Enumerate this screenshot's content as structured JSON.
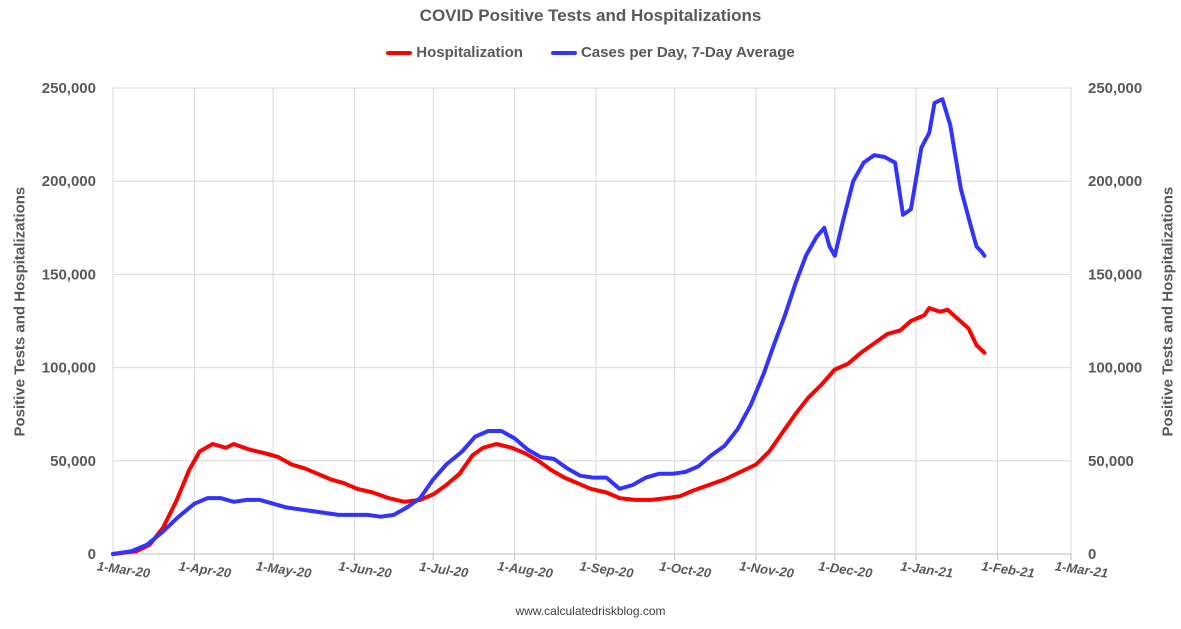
{
  "chart_data": {
    "type": "line",
    "title": "COVID Positive Tests and Hospitalizations",
    "ylabel_left": "Positive Tests and Hospitalizations",
    "ylabel_right": "Positive Tests and Hospitalizations",
    "source": "www.calculatedriskblog.com",
    "ylim": [
      0,
      250000
    ],
    "yticks": [
      "0",
      "50,000",
      "100,000",
      "150,000",
      "200,000",
      "250,000"
    ],
    "xlim": [
      "2020-03-01",
      "2021-03-01"
    ],
    "xticks": [
      "1-Mar-20",
      "1-Apr-20",
      "1-May-20",
      "1-Jun-20",
      "1-Jul-20",
      "1-Aug-20",
      "1-Sep-20",
      "1-Oct-20",
      "1-Nov-20",
      "1-Dec-20",
      "1-Jan-21",
      "1-Feb-21",
      "1-Mar-21"
    ],
    "grid": true,
    "legend_position": "top",
    "series": [
      {
        "name": "Hospitalization",
        "color": "#ff0000",
        "points": [
          [
            "2020-03-01",
            0
          ],
          [
            "2020-03-10",
            1500
          ],
          [
            "2020-03-15",
            5000
          ],
          [
            "2020-03-20",
            14000
          ],
          [
            "2020-03-25",
            28000
          ],
          [
            "2020-03-30",
            45000
          ],
          [
            "2020-04-03",
            55000
          ],
          [
            "2020-04-08",
            59000
          ],
          [
            "2020-04-13",
            57000
          ],
          [
            "2020-04-16",
            59000
          ],
          [
            "2020-04-22",
            56000
          ],
          [
            "2020-04-28",
            54000
          ],
          [
            "2020-05-03",
            52000
          ],
          [
            "2020-05-08",
            48000
          ],
          [
            "2020-05-13",
            46000
          ],
          [
            "2020-05-18",
            43000
          ],
          [
            "2020-05-23",
            40000
          ],
          [
            "2020-05-28",
            38000
          ],
          [
            "2020-06-02",
            35000
          ],
          [
            "2020-06-08",
            33000
          ],
          [
            "2020-06-14",
            30000
          ],
          [
            "2020-06-20",
            28000
          ],
          [
            "2020-06-26",
            29000
          ],
          [
            "2020-07-01",
            32000
          ],
          [
            "2020-07-06",
            37000
          ],
          [
            "2020-07-11",
            43000
          ],
          [
            "2020-07-16",
            53000
          ],
          [
            "2020-07-20",
            57000
          ],
          [
            "2020-07-25",
            59000
          ],
          [
            "2020-07-31",
            57000
          ],
          [
            "2020-08-05",
            54000
          ],
          [
            "2020-08-10",
            50000
          ],
          [
            "2020-08-15",
            45000
          ],
          [
            "2020-08-20",
            41000
          ],
          [
            "2020-08-25",
            38000
          ],
          [
            "2020-08-30",
            35000
          ],
          [
            "2020-09-05",
            33000
          ],
          [
            "2020-09-10",
            30000
          ],
          [
            "2020-09-16",
            29000
          ],
          [
            "2020-09-22",
            29000
          ],
          [
            "2020-09-28",
            30000
          ],
          [
            "2020-10-03",
            31000
          ],
          [
            "2020-10-08",
            34000
          ],
          [
            "2020-10-14",
            37000
          ],
          [
            "2020-10-20",
            40000
          ],
          [
            "2020-10-26",
            44000
          ],
          [
            "2020-11-01",
            48000
          ],
          [
            "2020-11-06",
            55000
          ],
          [
            "2020-11-11",
            65000
          ],
          [
            "2020-11-16",
            75000
          ],
          [
            "2020-11-21",
            84000
          ],
          [
            "2020-11-26",
            91000
          ],
          [
            "2020-12-01",
            99000
          ],
          [
            "2020-12-06",
            102000
          ],
          [
            "2020-12-11",
            108000
          ],
          [
            "2020-12-16",
            113000
          ],
          [
            "2020-12-21",
            118000
          ],
          [
            "2020-12-26",
            120000
          ],
          [
            "2020-12-30",
            125000
          ],
          [
            "2021-01-04",
            128000
          ],
          [
            "2021-01-06",
            132000
          ],
          [
            "2021-01-10",
            130000
          ],
          [
            "2021-01-13",
            131000
          ],
          [
            "2021-01-17",
            126000
          ],
          [
            "2021-01-21",
            121000
          ],
          [
            "2021-01-24",
            112000
          ],
          [
            "2021-01-27",
            108000
          ]
        ]
      },
      {
        "name": "Cases per Day, 7-Day Average",
        "color": "#3333ff",
        "points": [
          [
            "2020-03-01",
            0
          ],
          [
            "2020-03-08",
            1500
          ],
          [
            "2020-03-14",
            5000
          ],
          [
            "2020-03-20",
            12000
          ],
          [
            "2020-03-26",
            20000
          ],
          [
            "2020-04-01",
            27000
          ],
          [
            "2020-04-06",
            30000
          ],
          [
            "2020-04-11",
            30000
          ],
          [
            "2020-04-16",
            28000
          ],
          [
            "2020-04-21",
            29000
          ],
          [
            "2020-04-26",
            29000
          ],
          [
            "2020-05-01",
            27000
          ],
          [
            "2020-05-06",
            25000
          ],
          [
            "2020-05-11",
            24000
          ],
          [
            "2020-05-16",
            23000
          ],
          [
            "2020-05-21",
            22000
          ],
          [
            "2020-05-26",
            21000
          ],
          [
            "2020-06-01",
            21000
          ],
          [
            "2020-06-06",
            21000
          ],
          [
            "2020-06-11",
            20000
          ],
          [
            "2020-06-16",
            21000
          ],
          [
            "2020-06-21",
            25000
          ],
          [
            "2020-06-26",
            30000
          ],
          [
            "2020-07-01",
            40000
          ],
          [
            "2020-07-06",
            48000
          ],
          [
            "2020-07-12",
            55000
          ],
          [
            "2020-07-17",
            63000
          ],
          [
            "2020-07-22",
            66000
          ],
          [
            "2020-07-27",
            66000
          ],
          [
            "2020-08-01",
            62000
          ],
          [
            "2020-08-06",
            56000
          ],
          [
            "2020-08-11",
            52000
          ],
          [
            "2020-08-16",
            51000
          ],
          [
            "2020-08-21",
            46000
          ],
          [
            "2020-08-26",
            42000
          ],
          [
            "2020-08-31",
            41000
          ],
          [
            "2020-09-05",
            41000
          ],
          [
            "2020-09-10",
            35000
          ],
          [
            "2020-09-15",
            37000
          ],
          [
            "2020-09-20",
            41000
          ],
          [
            "2020-09-25",
            43000
          ],
          [
            "2020-09-30",
            43000
          ],
          [
            "2020-10-05",
            44000
          ],
          [
            "2020-10-10",
            47000
          ],
          [
            "2020-10-15",
            53000
          ],
          [
            "2020-10-20",
            58000
          ],
          [
            "2020-10-25",
            67000
          ],
          [
            "2020-10-30",
            80000
          ],
          [
            "2020-11-04",
            97000
          ],
          [
            "2020-11-08",
            113000
          ],
          [
            "2020-11-12",
            128000
          ],
          [
            "2020-11-16",
            145000
          ],
          [
            "2020-11-20",
            160000
          ],
          [
            "2020-11-24",
            170000
          ],
          [
            "2020-11-27",
            175000
          ],
          [
            "2020-11-29",
            165000
          ],
          [
            "2020-12-01",
            160000
          ],
          [
            "2020-12-04",
            178000
          ],
          [
            "2020-12-08",
            200000
          ],
          [
            "2020-12-12",
            210000
          ],
          [
            "2020-12-16",
            214000
          ],
          [
            "2020-12-20",
            213000
          ],
          [
            "2020-12-24",
            210000
          ],
          [
            "2020-12-27",
            182000
          ],
          [
            "2020-12-30",
            185000
          ],
          [
            "2021-01-03",
            218000
          ],
          [
            "2021-01-06",
            226000
          ],
          [
            "2021-01-08",
            242000
          ],
          [
            "2021-01-11",
            244000
          ],
          [
            "2021-01-14",
            230000
          ],
          [
            "2021-01-18",
            196000
          ],
          [
            "2021-01-22",
            175000
          ],
          [
            "2021-01-24",
            165000
          ],
          [
            "2021-01-26",
            162000
          ],
          [
            "2021-01-27",
            160000
          ]
        ]
      }
    ]
  }
}
